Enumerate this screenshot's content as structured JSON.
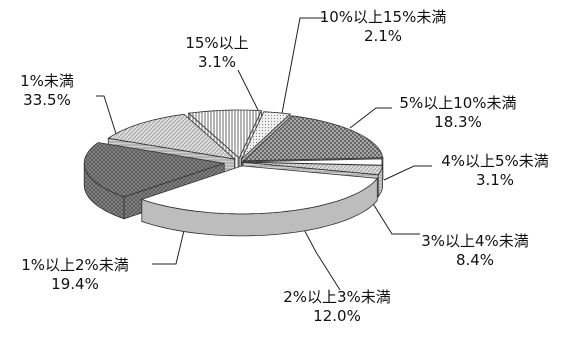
{
  "chart_data": {
    "type": "pie",
    "categories": [
      "1%未満",
      "1%以上2%未満",
      "2%以上3%未満",
      "3%以上4%未満",
      "4%以上5%未満",
      "5%以上10%未満",
      "10%以上15%未満",
      "15%以上"
    ],
    "values": [
      33.5,
      19.4,
      12.0,
      8.4,
      3.1,
      18.3,
      2.1,
      3.1
    ],
    "value_labels": [
      "33.5%",
      "19.4%",
      "12.0%",
      "8.4%",
      "3.1%",
      "18.3%",
      "2.1%",
      "3.1%"
    ],
    "title": "",
    "legend": "none",
    "style": "3d-exploded"
  }
}
